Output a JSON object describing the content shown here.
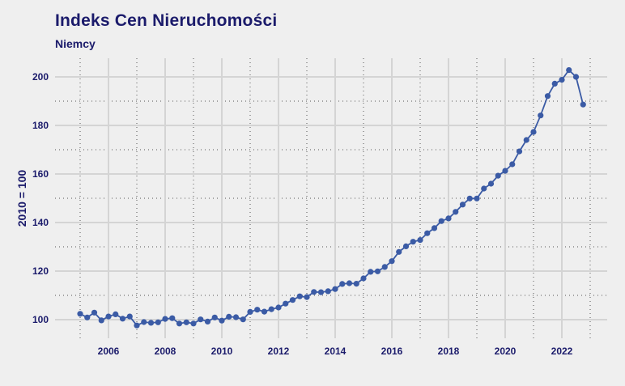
{
  "header": {
    "title": "Indeks Cen Nieruchomości",
    "subtitle": "Niemcy"
  },
  "colors": {
    "background": "#efefef",
    "series": "#3b5ba5",
    "text": "#1b1b6b",
    "grid": "#d4d4d4"
  },
  "chart_data": {
    "type": "line",
    "title": "Indeks Cen Nieruchomości",
    "subtitle": "Niemcy",
    "xlabel": "",
    "ylabel": "2010 = 100",
    "ylim": [
      92,
      208
    ],
    "xlim": [
      2004.5,
      2023.6
    ],
    "grid": true,
    "legend": null,
    "y_ticks": [
      100,
      120,
      140,
      160,
      180,
      200
    ],
    "x_ticks": [
      2006,
      2008,
      2010,
      2012,
      2014,
      2016,
      2018,
      2020,
      2022
    ],
    "frequency": "quarterly",
    "x": [
      "2005-Q1",
      "2005-Q2",
      "2005-Q3",
      "2005-Q4",
      "2006-Q1",
      "2006-Q2",
      "2006-Q3",
      "2006-Q4",
      "2007-Q1",
      "2007-Q2",
      "2007-Q3",
      "2007-Q4",
      "2008-Q1",
      "2008-Q2",
      "2008-Q3",
      "2008-Q4",
      "2009-Q1",
      "2009-Q2",
      "2009-Q3",
      "2009-Q4",
      "2010-Q1",
      "2010-Q2",
      "2010-Q3",
      "2010-Q4",
      "2011-Q1",
      "2011-Q2",
      "2011-Q3",
      "2011-Q4",
      "2012-Q1",
      "2012-Q2",
      "2012-Q3",
      "2012-Q4",
      "2013-Q1",
      "2013-Q2",
      "2013-Q3",
      "2013-Q4",
      "2014-Q1",
      "2014-Q2",
      "2014-Q3",
      "2014-Q4",
      "2015-Q1",
      "2015-Q2",
      "2015-Q3",
      "2015-Q4",
      "2016-Q1",
      "2016-Q2",
      "2016-Q3",
      "2016-Q4",
      "2017-Q1",
      "2017-Q2",
      "2017-Q3",
      "2017-Q4",
      "2018-Q1",
      "2018-Q2",
      "2018-Q3",
      "2018-Q4",
      "2019-Q1",
      "2019-Q2",
      "2019-Q3",
      "2019-Q4",
      "2020-Q1",
      "2020-Q2",
      "2020-Q3",
      "2020-Q4",
      "2021-Q1",
      "2021-Q2",
      "2021-Q3",
      "2021-Q4",
      "2022-Q1",
      "2022-Q2",
      "2022-Q3",
      "2022-Q4"
    ],
    "series": [
      {
        "name": "Niemcy",
        "values": [
          102.4,
          100.9,
          102.9,
          99.7,
          101.3,
          102.2,
          100.4,
          101.3,
          97.6,
          99.0,
          98.7,
          98.9,
          100.3,
          100.6,
          98.4,
          98.9,
          98.4,
          100.1,
          99.2,
          100.9,
          99.6,
          101.2,
          101.0,
          100.1,
          103.2,
          104.1,
          103.3,
          104.3,
          105.0,
          106.6,
          108.1,
          109.6,
          109.3,
          111.4,
          111.3,
          111.7,
          112.6,
          114.7,
          115.0,
          114.8,
          117.0,
          119.7,
          119.9,
          121.7,
          124.1,
          127.9,
          130.2,
          132.1,
          132.8,
          135.6,
          137.7,
          140.6,
          141.7,
          144.4,
          147.4,
          149.9,
          149.9,
          154.0,
          156.0,
          159.3,
          161.3,
          164.0,
          169.3,
          174.0,
          177.3,
          184.1,
          192.1,
          197.2,
          198.8,
          202.8,
          200.0,
          188.6
        ]
      }
    ]
  }
}
